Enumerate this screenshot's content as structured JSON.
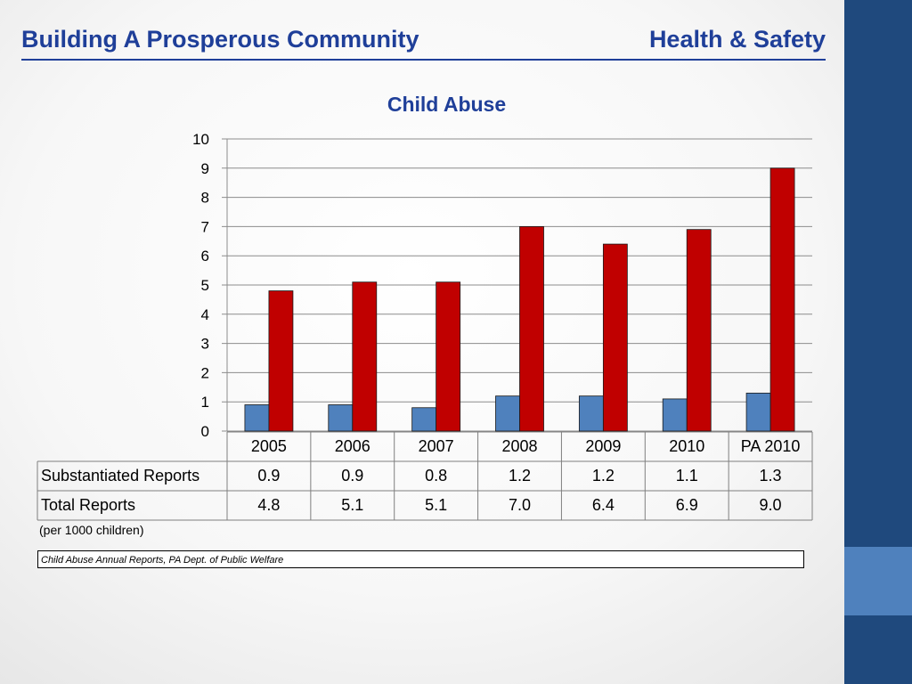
{
  "slide": {
    "title_left": "Building A Prosperous Community",
    "title_right": "Health & Safety",
    "footnote": "(per 1000 children)",
    "source": "Child Abuse Annual Reports, PA Dept. of Public Welfare"
  },
  "chart_data": {
    "type": "bar",
    "title": "Child Abuse",
    "categories": [
      "2005",
      "2006",
      "2007",
      "2008",
      "2009",
      "2010",
      "PA 2010"
    ],
    "series": [
      {
        "name": "Substantiated Reports",
        "values": [
          0.9,
          0.9,
          0.8,
          1.2,
          1.2,
          1.1,
          1.3
        ],
        "color": "#4f81bd"
      },
      {
        "name": "Total Reports",
        "values": [
          4.8,
          5.1,
          5.1,
          7.0,
          6.4,
          6.9,
          9.0
        ],
        "color": "#c00000"
      }
    ],
    "table_values": [
      [
        "0.9",
        "0.9",
        "0.8",
        "1.2",
        "1.2",
        "1.1",
        "1.3"
      ],
      [
        "4.8",
        "5.1",
        "5.1",
        "7.0",
        "6.4",
        "6.9",
        "9.0"
      ]
    ],
    "ylim": [
      0,
      10
    ],
    "yticks": [
      "0",
      "1",
      "2",
      "3",
      "4",
      "5",
      "6",
      "7",
      "8",
      "9",
      "10"
    ],
    "grid": true,
    "legend": "data table below chart"
  },
  "colors": {
    "title": "#1f3f99",
    "sidebar": "#1f497d",
    "sidebar_accent": "#4f81bd"
  }
}
